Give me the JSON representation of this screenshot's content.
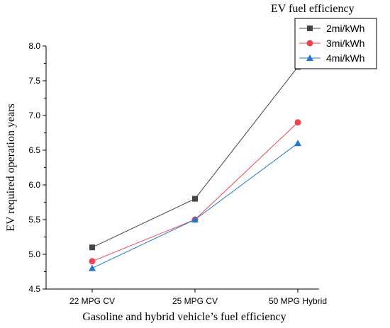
{
  "chart_data": {
    "type": "line",
    "xlabel": "Gasoline and hybrid vehicle’s fuel efficiency",
    "ylabel": "EV required operation years",
    "categories": [
      "22 MPG CV",
      "25 MPG CV",
      "50 MPG Hybrid"
    ],
    "yticks": [
      "4.5",
      "5.0",
      "5.5",
      "6.0",
      "6.5",
      "7.0",
      "7.5",
      "8.0"
    ],
    "ylim": [
      4.5,
      8.0
    ],
    "grid": false,
    "legend": {
      "title": "EV fuel efficiency",
      "placement": "top-right"
    },
    "series": [
      {
        "name": "2mi/kWh",
        "values": [
          5.1,
          5.8,
          7.7
        ],
        "color": "#444444",
        "marker": "square"
      },
      {
        "name": "3mi/kWh",
        "values": [
          4.9,
          5.5,
          6.9
        ],
        "color": "#f0444c",
        "marker": "circle"
      },
      {
        "name": "4mi/kWh",
        "values": [
          4.8,
          5.5,
          6.6
        ],
        "color": "#1f77d4",
        "marker": "triangle"
      }
    ]
  }
}
